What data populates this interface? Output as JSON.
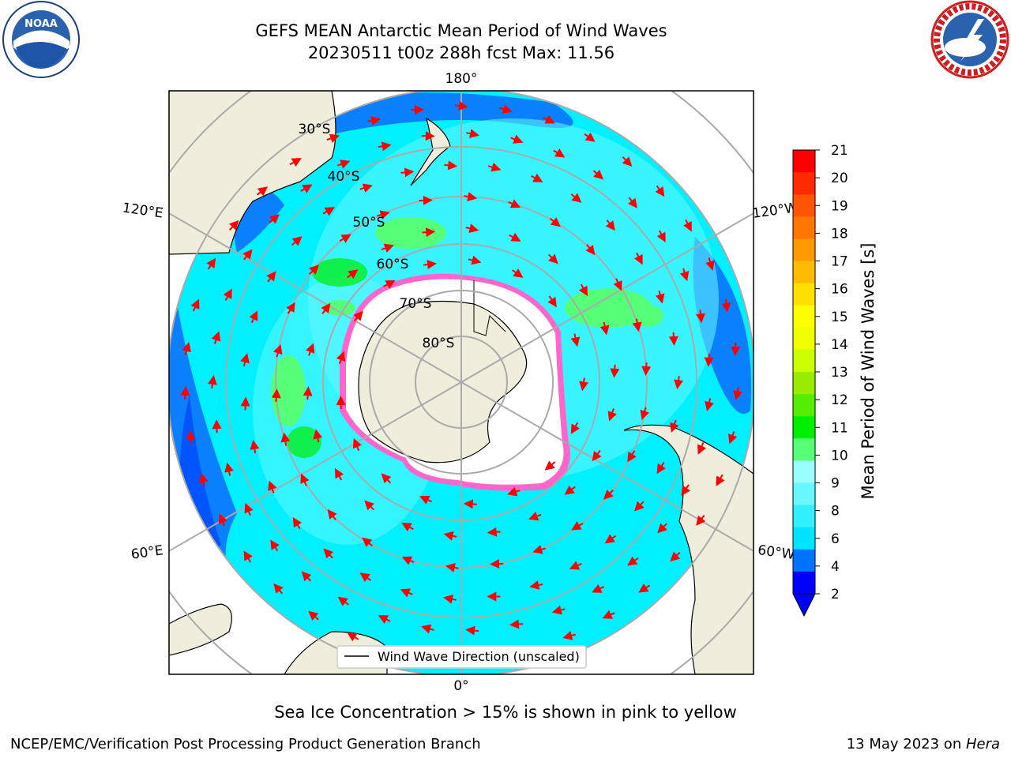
{
  "title": {
    "line1": "GEFS MEAN Antarctic Mean Period of Wind Waves",
    "line2": "20230511 t00z 288h fcst   Max: 11.56"
  },
  "map": {
    "lon_labels": {
      "top": "180°",
      "bottom": "0°",
      "upper_left": "120°E",
      "upper_right": "120°W",
      "lower_left": "60°E",
      "lower_right": "60°W"
    },
    "lat_labels": [
      "30°S",
      "40°S",
      "50°S",
      "60°S",
      "70°S",
      "80°S"
    ],
    "legend_label": "Wind Wave Direction (unscaled)"
  },
  "colorbar": {
    "label": "Mean Period of Wind Waves [s]",
    "ticks": [
      "21",
      "20",
      "19",
      "18",
      "17",
      "16",
      "15",
      "14",
      "13",
      "12",
      "11",
      "10",
      "9",
      "8",
      "6",
      "4",
      "2"
    ],
    "colors": [
      "#0000ff",
      "#0073ff",
      "#00e5ff",
      "#33f0ff",
      "#66f7ff",
      "#99ffff",
      "#55ff77",
      "#00ee00",
      "#55ee00",
      "#99ee00",
      "#ccff00",
      "#eeff00",
      "#ffff00",
      "#ffe000",
      "#ffbb00",
      "#ff9900",
      "#ff7700",
      "#ff5500",
      "#ff2a00",
      "#ff0000"
    ]
  },
  "caption": "Sea Ice Concentration > 15% is shown in pink to yellow",
  "footer": {
    "left": "NCEP/EMC/Verification Post Processing Product Generation Branch",
    "right_date": "13 May 2023 on ",
    "right_machine": "Hera"
  },
  "logos": {
    "noaa_text": "NOAA",
    "nws_text": "NATIONAL WEATHER SERVICE"
  }
}
